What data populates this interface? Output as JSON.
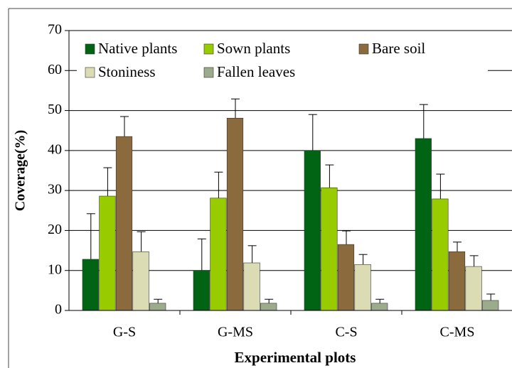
{
  "chart_data": {
    "type": "bar",
    "x_label": "Experimental plots",
    "y_label": "Coverage(%)",
    "categories": [
      "G-S",
      "G-MS",
      "C-S",
      "C-MS"
    ],
    "series": [
      {
        "name": "Native plants",
        "color": "#006414",
        "values": [
          12.8,
          10,
          40,
          43
        ],
        "errors": [
          11.4,
          7.9,
          9,
          8.5
        ]
      },
      {
        "name": "Sown plants",
        "color": "#99cc00",
        "values": [
          28.6,
          28.1,
          30.7,
          27.9
        ],
        "errors": [
          7.1,
          6.5,
          5.7,
          6.2
        ]
      },
      {
        "name": "Bare soil",
        "color": "#8b6a3e",
        "values": [
          43.5,
          48.1,
          16.5,
          14.7
        ],
        "errors": [
          5,
          4.8,
          3.4,
          2.4
        ]
      },
      {
        "name": "Stoniness",
        "color": "#dcdcb4",
        "values": [
          14.7,
          11.9,
          11.5,
          11
        ],
        "errors": [
          5,
          4.3,
          2.5,
          2.7
        ]
      },
      {
        "name": "Fallen leaves",
        "color": "#9bab8b",
        "values": [
          1.8,
          1.8,
          1.8,
          2.5
        ],
        "errors": [
          1,
          1,
          1,
          1.6
        ]
      }
    ],
    "ylim": [
      0,
      70
    ],
    "yticks": [
      0,
      10,
      20,
      30,
      40,
      50,
      60,
      70
    ],
    "grid": true
  }
}
